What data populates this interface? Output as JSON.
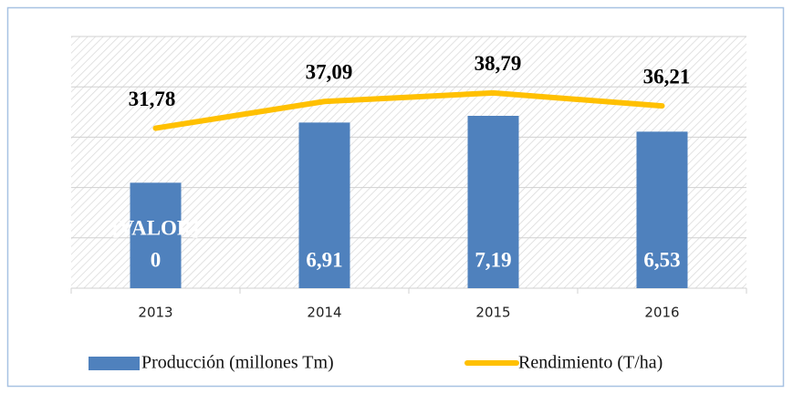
{
  "chart_data": {
    "type": "bar_line",
    "categories": [
      "2013",
      "2014",
      "2015",
      "2016"
    ],
    "series": [
      {
        "name": "Producción (millones Tm)",
        "color": "#4f81bd",
        "type": "bar",
        "values": [
          4.4,
          6.91,
          7.19,
          6.53
        ],
        "value_labels": [
          null,
          "6,91",
          "7,19",
          "6,53"
        ]
      },
      {
        "name": "Rendimiento (T/ha)",
        "color": "#ffc000",
        "type": "line",
        "axis": "y2",
        "values": [
          31.78,
          37.09,
          38.79,
          36.21
        ],
        "value_labels": [
          "31,78",
          "37,09",
          "38,79",
          "36,21"
        ]
      }
    ],
    "annotations": [
      "[VALOR]",
      "0"
    ],
    "ylim": [
      0,
      10.5
    ],
    "y2lim": [
      0,
      50
    ],
    "y2ticks": [
      0,
      10,
      20,
      30,
      40,
      50
    ],
    "grid": true,
    "legend": "bottom"
  }
}
